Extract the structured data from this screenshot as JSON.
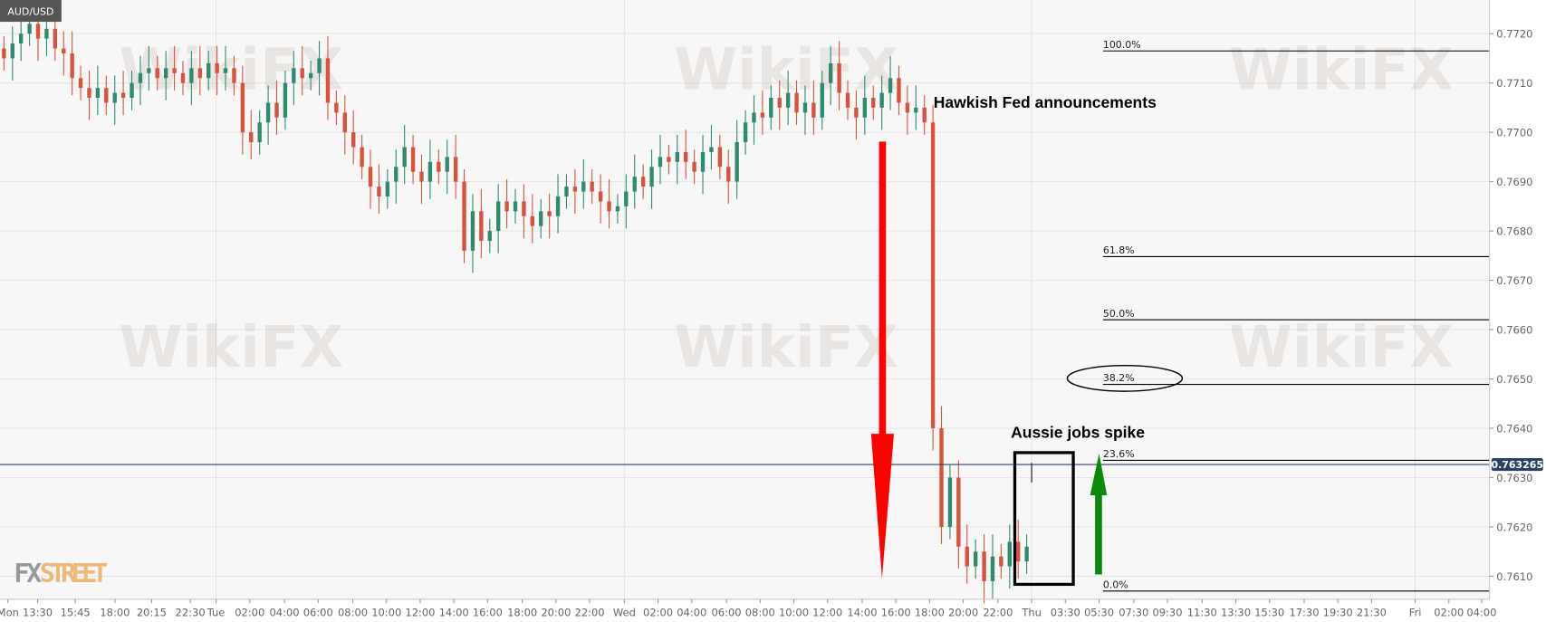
{
  "chart_data": {
    "type": "candlestick",
    "title": "AUD/USD",
    "interval_note": "",
    "ylim": [
      0.7604,
      0.7727
    ],
    "y_ticks": [
      "0.7720",
      "0.7710",
      "0.7700",
      "0.7690",
      "0.7680",
      "0.7670",
      "0.7660",
      "0.7650",
      "0.7640",
      "0.7630",
      "0.7620",
      "0.7610"
    ],
    "x_ticks": [
      "Mon",
      "13:30",
      "15:45",
      "18:00",
      "20:15",
      "22:30",
      "Tue",
      "02:00",
      "04:00",
      "06:00",
      "08:00",
      "10:00",
      "12:00",
      "14:00",
      "16:00",
      "18:00",
      "20:00",
      "22:00",
      "Wed",
      "02:00",
      "04:00",
      "06:00",
      "08:00",
      "10:00",
      "12:00",
      "14:00",
      "16:00",
      "18:00",
      "20:00",
      "22:00",
      "Thu",
      "03:30",
      "05:30",
      "07:30",
      "09:30",
      "11:30",
      "13:30",
      "15:30",
      "17:30",
      "19:30",
      "21:30",
      "Fri",
      "02:00",
      "04:00"
    ],
    "closes": [
      0.7715,
      0.7718,
      0.772,
      0.7722,
      0.7719,
      0.7721,
      0.7717,
      0.7716,
      0.7711,
      0.7709,
      0.7707,
      0.7709,
      0.7706,
      0.7708,
      0.7707,
      0.771,
      0.7712,
      0.7713,
      0.7711,
      0.7713,
      0.7712,
      0.771,
      0.7713,
      0.7711,
      0.7714,
      0.7712,
      0.7713,
      0.771,
      0.77,
      0.7698,
      0.7702,
      0.7706,
      0.7703,
      0.771,
      0.7713,
      0.7711,
      0.7712,
      0.7715,
      0.7706,
      0.7704,
      0.77,
      0.7697,
      0.7693,
      0.7689,
      0.7687,
      0.769,
      0.7693,
      0.7697,
      0.7692,
      0.769,
      0.7694,
      0.7692,
      0.7695,
      0.769,
      0.7676,
      0.7684,
      0.7678,
      0.768,
      0.7686,
      0.7684,
      0.7686,
      0.7683,
      0.7681,
      0.7684,
      0.7683,
      0.7687,
      0.7689,
      0.7688,
      0.769,
      0.7688,
      0.7686,
      0.7684,
      0.7685,
      0.7688,
      0.7691,
      0.7689,
      0.7693,
      0.7695,
      0.7694,
      0.7696,
      0.7694,
      0.7692,
      0.7696,
      0.7697,
      0.7693,
      0.769,
      0.7698,
      0.7702,
      0.7704,
      0.7703,
      0.7707,
      0.7705,
      0.7708,
      0.7704,
      0.7706,
      0.7703,
      0.771,
      0.7714,
      0.7708,
      0.7705,
      0.7703,
      0.7707,
      0.7705,
      0.7708,
      0.7711,
      0.7706,
      0.7704,
      0.7705,
      0.7702,
      0.764,
      0.762,
      0.763,
      0.7616,
      0.7612,
      0.7615,
      0.7609,
      0.7614,
      0.7612,
      0.7617,
      0.7613,
      0.7616
    ],
    "current_price": "0.763265",
    "fibonacci": [
      {
        "label": "100.0%",
        "price": 0.77165
      },
      {
        "label": "61.8%",
        "price": 0.76748
      },
      {
        "label": "50.0%",
        "price": 0.7662
      },
      {
        "label": "38.2%",
        "price": 0.76489
      },
      {
        "label": "23.6%",
        "price": 0.76335
      },
      {
        "label": "0.0%",
        "price": 0.7607
      }
    ],
    "annotations": {
      "fed": "Hawkish Fed announcements",
      "jobs": "Aussie jobs spike"
    },
    "colors": {
      "up": "#2e8b6e",
      "down": "#d9533c",
      "grid": "#e6e6e6",
      "background": "#f7f7f7",
      "price_tag": "#2b4262",
      "arrow_down": "#ff0000",
      "arrow_up": "#0a8a0a"
    },
    "grid": true
  },
  "watermarks": {
    "wikifx": "WikiFX",
    "logo_fx": "FX",
    "logo_street": "STREET"
  }
}
